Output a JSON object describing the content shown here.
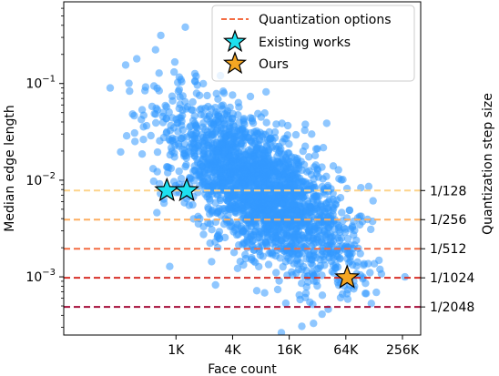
{
  "chart_data": {
    "type": "scatter",
    "xscale": "log2",
    "yscale": "log10",
    "xlabel": "Face count",
    "ylabel": "Median edge length",
    "y2label": "Quantization step size",
    "xlim": [
      64,
      400000
    ],
    "ylim": [
      0.00025,
      0.7
    ],
    "grid": false,
    "legend_position": "top-right",
    "x_ticks": [
      {
        "value": 1000,
        "label": "1K"
      },
      {
        "value": 4000,
        "label": "4K"
      },
      {
        "value": 16000,
        "label": "16K"
      },
      {
        "value": 64000,
        "label": "64K"
      },
      {
        "value": 256000,
        "label": "256K"
      }
    ],
    "y_ticks": [
      {
        "value": 0.1,
        "base": "10",
        "exp": "−1"
      },
      {
        "value": 0.01,
        "base": "10",
        "exp": "−2"
      },
      {
        "value": 0.001,
        "base": "10",
        "exp": "−3"
      }
    ],
    "quantization_options": [
      {
        "label": "1/128",
        "value": 0.0078125,
        "color": "#fdd38b"
      },
      {
        "label": "1/256",
        "value": 0.00390625,
        "color": "#fdae61"
      },
      {
        "label": "1/512",
        "value": 0.001953125,
        "color": "#f46d43"
      },
      {
        "label": "1/1024",
        "value": 0.0009765625,
        "color": "#d73027"
      },
      {
        "label": "1/2048",
        "value": 0.00048828125,
        "color": "#a50f3a"
      }
    ],
    "scatter_cloud": {
      "color": "#3399ff",
      "opacity": 0.55,
      "n_points": 2200,
      "trend": {
        "log10_y_at_1K": -1.55,
        "slope_per_decade": -0.62
      },
      "log10_x_range": [
        2.3,
        5.5
      ],
      "log10_y_spread": 0.33
    },
    "existing_works": {
      "label": "Existing works",
      "color": "#1de0f0",
      "points": [
        {
          "x": 800,
          "y": 0.0078
        },
        {
          "x": 1300,
          "y": 0.0078
        }
      ]
    },
    "ours": {
      "label": "Ours",
      "color": "#f5a623",
      "points": [
        {
          "x": 66000,
          "y": 0.00098
        }
      ]
    },
    "legend": {
      "quantization_label": "Quantization options",
      "existing_label": "Existing works",
      "ours_label": "Ours"
    }
  }
}
